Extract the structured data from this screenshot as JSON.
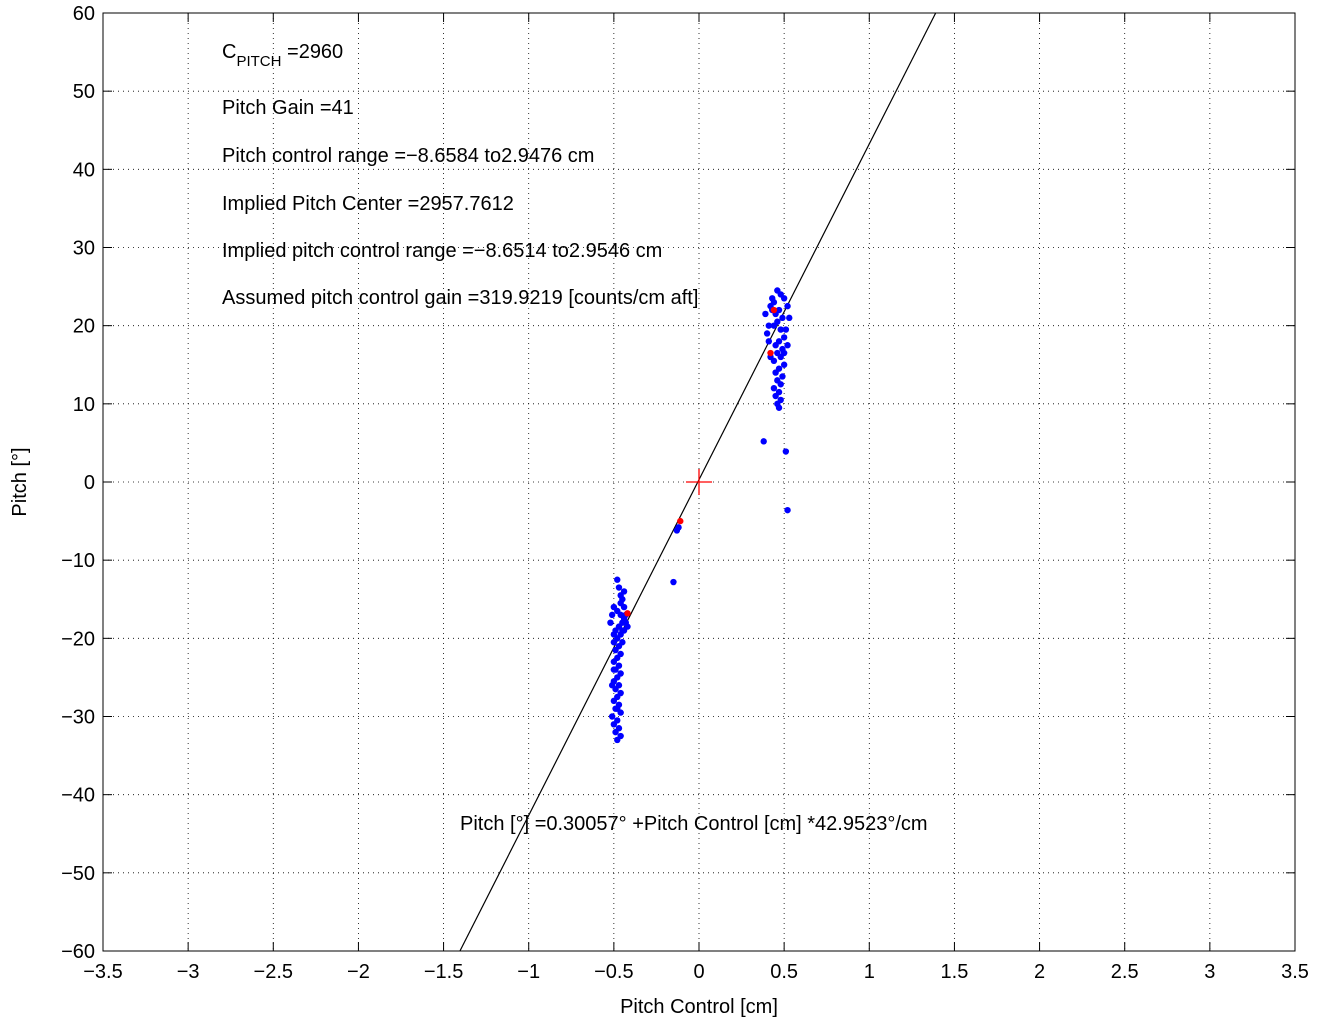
{
  "chart_data": {
    "type": "scatter",
    "xlabel": "Pitch Control [cm]",
    "ylabel": "Pitch [°]",
    "xlim": [
      -3.5,
      3.5
    ],
    "ylim": [
      -60,
      60
    ],
    "x_ticks": [
      -3.5,
      -3,
      -2.5,
      -2,
      -1.5,
      -1,
      -0.5,
      0,
      0.5,
      1,
      1.5,
      2,
      2.5,
      3,
      3.5
    ],
    "y_ticks": [
      -60,
      -50,
      -40,
      -30,
      -20,
      -10,
      0,
      10,
      20,
      30,
      40,
      50,
      60
    ],
    "x_tick_labels": [
      "−3.5",
      "−3",
      "−2.5",
      "−2",
      "−1.5",
      "−1",
      "−0.5",
      "0",
      "0.5",
      "1",
      "1.5",
      "2",
      "2.5",
      "3",
      "3.5"
    ],
    "y_tick_labels": [
      "−60",
      "−50",
      "−40",
      "−30",
      "−20",
      "−10",
      "0",
      "10",
      "20",
      "30",
      "40",
      "50",
      "60"
    ],
    "grid": true,
    "fit_line": {
      "intercept": 0.30057,
      "slope": 42.9523
    },
    "center_marker": {
      "x": 0,
      "y": 0,
      "color": "#ff0000"
    },
    "colors": {
      "blue_points": "#0000ff",
      "red_points": "#ff0000",
      "line": "#000000"
    },
    "annotations": {
      "c_pitch_main": "C",
      "c_pitch_sub": "PITCH",
      "c_pitch_value": " =2960",
      "pitch_gain": "Pitch Gain =41",
      "pitch_control_range": "Pitch control range =−8.6584 to2.9476 cm",
      "implied_center": "Implied Pitch Center =2957.7612",
      "implied_range": "Implied pitch control range =−8.6514 to2.9546 cm",
      "assumed_gain": "Assumed pitch control gain =319.9219 [counts/cm aft]",
      "equation": "Pitch [°] =0.30057° +Pitch Control [cm] *42.9523°/cm"
    },
    "series": [
      {
        "color": "blue",
        "points": [
          [
            -0.48,
            -12.5
          ],
          [
            -0.47,
            -13.5
          ],
          [
            -0.46,
            -14.5
          ],
          [
            -0.45,
            -15
          ],
          [
            -0.5,
            -16
          ],
          [
            -0.48,
            -16.5
          ],
          [
            -0.46,
            -17
          ],
          [
            -0.44,
            -17.5
          ],
          [
            -0.43,
            -18
          ],
          [
            -0.45,
            -18
          ],
          [
            -0.47,
            -18.5
          ],
          [
            -0.49,
            -19
          ],
          [
            -0.5,
            -19.5
          ],
          [
            -0.42,
            -18.5
          ],
          [
            -0.44,
            -19
          ],
          [
            -0.46,
            -19.5
          ],
          [
            -0.48,
            -20
          ],
          [
            -0.5,
            -20.5
          ],
          [
            -0.47,
            -21
          ],
          [
            -0.49,
            -21.5
          ],
          [
            -0.46,
            -22
          ],
          [
            -0.48,
            -22.5
          ],
          [
            -0.5,
            -23
          ],
          [
            -0.47,
            -23.5
          ],
          [
            -0.49,
            -24
          ],
          [
            -0.46,
            -24.5
          ],
          [
            -0.48,
            -25
          ],
          [
            -0.5,
            -25.5
          ],
          [
            -0.47,
            -26
          ],
          [
            -0.49,
            -26.5
          ],
          [
            -0.46,
            -27
          ],
          [
            -0.48,
            -27.5
          ],
          [
            -0.5,
            -28
          ],
          [
            -0.47,
            -28.5
          ],
          [
            -0.49,
            -29
          ],
          [
            -0.46,
            -29.5
          ],
          [
            -0.51,
            -30
          ],
          [
            -0.48,
            -30.5
          ],
          [
            -0.5,
            -31
          ],
          [
            -0.47,
            -31.5
          ],
          [
            -0.49,
            -32
          ],
          [
            -0.46,
            -32.5
          ],
          [
            -0.48,
            -33
          ],
          [
            -0.51,
            -17
          ],
          [
            -0.44,
            -16
          ],
          [
            -0.45,
            -19
          ],
          [
            -0.43,
            -17
          ],
          [
            -0.52,
            -18
          ],
          [
            -0.46,
            -15.5
          ],
          [
            -0.44,
            -14
          ],
          [
            -0.5,
            -24
          ],
          [
            -0.48,
            -29
          ],
          [
            -0.51,
            -26
          ],
          [
            -0.45,
            -20.5
          ],
          [
            -0.12,
            -5.8
          ],
          [
            -0.13,
            -6.2
          ],
          [
            -0.15,
            -12.8
          ],
          [
            0.38,
            5.2
          ],
          [
            0.51,
            3.9
          ],
          [
            0.52,
            -3.6
          ],
          [
            0.46,
            24.5
          ],
          [
            0.48,
            24
          ],
          [
            0.5,
            23.5
          ],
          [
            0.44,
            23
          ],
          [
            0.42,
            22.5
          ],
          [
            0.47,
            22
          ],
          [
            0.45,
            21.5
          ],
          [
            0.49,
            21
          ],
          [
            0.43,
            22
          ],
          [
            0.46,
            20.5
          ],
          [
            0.44,
            20
          ],
          [
            0.48,
            19.5
          ],
          [
            0.41,
            20
          ],
          [
            0.4,
            19
          ],
          [
            0.5,
            18.5
          ],
          [
            0.47,
            18
          ],
          [
            0.45,
            17.5
          ],
          [
            0.49,
            17
          ],
          [
            0.46,
            16.5
          ],
          [
            0.48,
            16
          ],
          [
            0.44,
            15.5
          ],
          [
            0.5,
            15
          ],
          [
            0.47,
            14.5
          ],
          [
            0.45,
            14
          ],
          [
            0.49,
            13.5
          ],
          [
            0.46,
            13
          ],
          [
            0.48,
            12.5
          ],
          [
            0.44,
            12
          ],
          [
            0.47,
            11.5
          ],
          [
            0.45,
            11
          ],
          [
            0.48,
            10.5
          ],
          [
            0.46,
            10
          ],
          [
            0.47,
            9.5
          ],
          [
            0.52,
            22.5
          ],
          [
            0.53,
            21
          ],
          [
            0.43,
            23.5
          ],
          [
            0.39,
            21.5
          ],
          [
            0.41,
            18
          ],
          [
            0.51,
            19.5
          ],
          [
            0.5,
            16.5
          ],
          [
            0.42,
            16
          ],
          [
            0.52,
            17.5
          ]
        ]
      },
      {
        "color": "red",
        "points": [
          [
            -0.42,
            -16.8
          ],
          [
            -0.11,
            -5.0
          ],
          [
            0.42,
            16.5
          ],
          [
            0.44,
            22.0
          ]
        ]
      }
    ]
  }
}
